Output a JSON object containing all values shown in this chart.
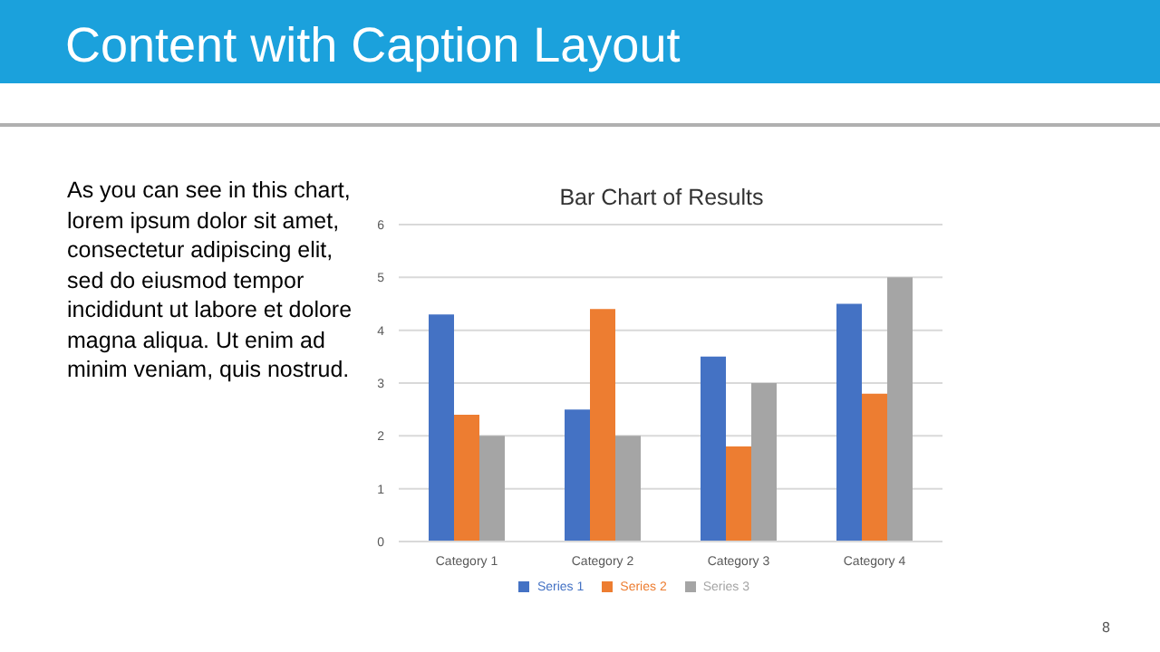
{
  "chart_data": {
    "type": "bar",
    "title": "Content with Caption Layout",
    "subtitle": "Bar Chart of Results",
    "annotations": [
      "As you can see in this chart, lorem ipsum dolor sit amet, consectetur adipiscing elit, sed do eiusmod tempor incididunt ut labore et dolore magna aliqua. Ut enim ad minim veniam, quis nostrud.",
      "8"
    ],
    "categories": [
      "Category 1",
      "Category 2",
      "Category 3",
      "Category 4"
    ],
    "series": [
      {
        "name": "Series 1",
        "color": "#4472c4",
        "values": [
          4.3,
          2.5,
          3.5,
          4.5
        ]
      },
      {
        "name": "Series 2",
        "color": "#ed7d31",
        "values": [
          2.4,
          4.4,
          1.8,
          2.8
        ]
      },
      {
        "name": "Series 3",
        "color": "#a5a5a5",
        "values": [
          2,
          2,
          3,
          5
        ]
      }
    ],
    "ylim": [
      0,
      6
    ],
    "yticks": [
      0,
      1,
      2,
      3,
      4,
      5,
      6
    ],
    "grid": "y",
    "legend": "bottom"
  }
}
